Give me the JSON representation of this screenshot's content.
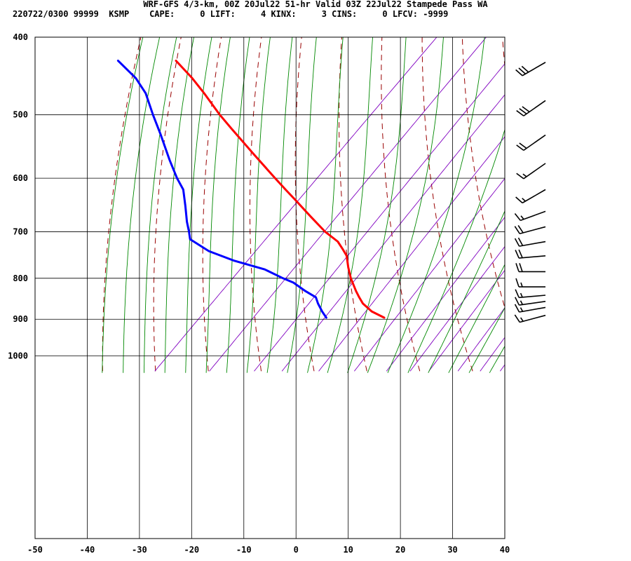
{
  "header": {
    "line1": "WRF-GFS 4/3-km, 00Z 20Jul22 51-hr Valid 03Z 22Jul22 Stampede Pass WA",
    "line2": "220722/0300 99999  KSMP    CAPE:     0 LIFT:     4 KINX:     3 CINS:     0 LFCV: -9999"
  },
  "chart_data": {
    "type": "line",
    "subtype": "skew-t log-p sounding",
    "title": "WRF-GFS 4/3-km, 00Z 20Jul22 51-hr Valid 03Z 22Jul22 Stampede Pass WA",
    "xlabel": "",
    "ylabel": "",
    "x_range": [
      -50,
      40
    ],
    "p_range": [
      400,
      1045
    ],
    "y_scale": "log",
    "x_ticks": [
      -50,
      -40,
      -30,
      -20,
      -10,
      0,
      10,
      20,
      30,
      40
    ],
    "p_ticks": [
      400,
      500,
      600,
      700,
      800,
      900,
      1000
    ],
    "grid": true,
    "colors": {
      "temperature": "#ff0000",
      "dewpoint": "#0000ff",
      "dry_adiabat": "#990000",
      "moist_adiabat": "#008800",
      "mixing_ratio": "#8000c0",
      "grid": "#000000"
    },
    "series": [
      {
        "name": "",
        "role": "temperature",
        "points": [
          {
            "p": 896,
            "t": 16.9
          },
          {
            "p": 880,
            "t": 14.5
          },
          {
            "p": 860,
            "t": 12.8
          },
          {
            "p": 845,
            "t": 12.1
          },
          {
            "p": 830,
            "t": 11.5
          },
          {
            "p": 800,
            "t": 10.5
          },
          {
            "p": 775,
            "t": 10.0
          },
          {
            "p": 750,
            "t": 9.7
          },
          {
            "p": 735,
            "t": 8.9
          },
          {
            "p": 720,
            "t": 8.0
          },
          {
            "p": 700,
            "t": 5.6
          },
          {
            "p": 670,
            "t": 2.8
          },
          {
            "p": 640,
            "t": 0.0
          },
          {
            "p": 620,
            "t": -2.0
          },
          {
            "p": 600,
            "t": -4.0
          },
          {
            "p": 560,
            "t": -8.1
          },
          {
            "p": 520,
            "t": -12.4
          },
          {
            "p": 500,
            "t": -14.6
          },
          {
            "p": 470,
            "t": -17.6
          },
          {
            "p": 450,
            "t": -19.9
          },
          {
            "p": 428,
            "t": -23.0
          }
        ]
      },
      {
        "name": "",
        "role": "dewpoint",
        "points": [
          {
            "p": 896,
            "t": 5.8
          },
          {
            "p": 880,
            "t": 5.0
          },
          {
            "p": 860,
            "t": 4.2
          },
          {
            "p": 845,
            "t": 3.8
          },
          {
            "p": 830,
            "t": 1.8
          },
          {
            "p": 810,
            "t": -0.5
          },
          {
            "p": 800,
            "t": -2.5
          },
          {
            "p": 780,
            "t": -6.0
          },
          {
            "p": 760,
            "t": -12.0
          },
          {
            "p": 740,
            "t": -16.7
          },
          {
            "p": 715,
            "t": -20.3
          },
          {
            "p": 700,
            "t": -20.5
          },
          {
            "p": 680,
            "t": -20.9
          },
          {
            "p": 650,
            "t": -21.2
          },
          {
            "p": 620,
            "t": -21.6
          },
          {
            "p": 600,
            "t": -22.8
          },
          {
            "p": 570,
            "t": -24.2
          },
          {
            "p": 530,
            "t": -25.9
          },
          {
            "p": 500,
            "t": -27.4
          },
          {
            "p": 470,
            "t": -28.8
          },
          {
            "p": 450,
            "t": -30.7
          },
          {
            "p": 428,
            "t": -34.1
          }
        ]
      }
    ],
    "wind_barbs": [
      {
        "p": 430,
        "dir": 240,
        "spd": 30
      },
      {
        "p": 480,
        "dir": 235,
        "spd": 30
      },
      {
        "p": 530,
        "dir": 235,
        "spd": 20
      },
      {
        "p": 575,
        "dir": 235,
        "spd": 15
      },
      {
        "p": 620,
        "dir": 240,
        "spd": 15
      },
      {
        "p": 660,
        "dir": 250,
        "spd": 15
      },
      {
        "p": 690,
        "dir": 255,
        "spd": 20
      },
      {
        "p": 720,
        "dir": 260,
        "spd": 20
      },
      {
        "p": 750,
        "dir": 265,
        "spd": 20
      },
      {
        "p": 785,
        "dir": 270,
        "spd": 20
      },
      {
        "p": 820,
        "dir": 270,
        "spd": 15
      },
      {
        "p": 840,
        "dir": 265,
        "spd": 15
      },
      {
        "p": 855,
        "dir": 262,
        "spd": 15
      },
      {
        "p": 870,
        "dir": 260,
        "spd": 15
      },
      {
        "p": 890,
        "dir": 255,
        "spd": 15
      }
    ]
  }
}
